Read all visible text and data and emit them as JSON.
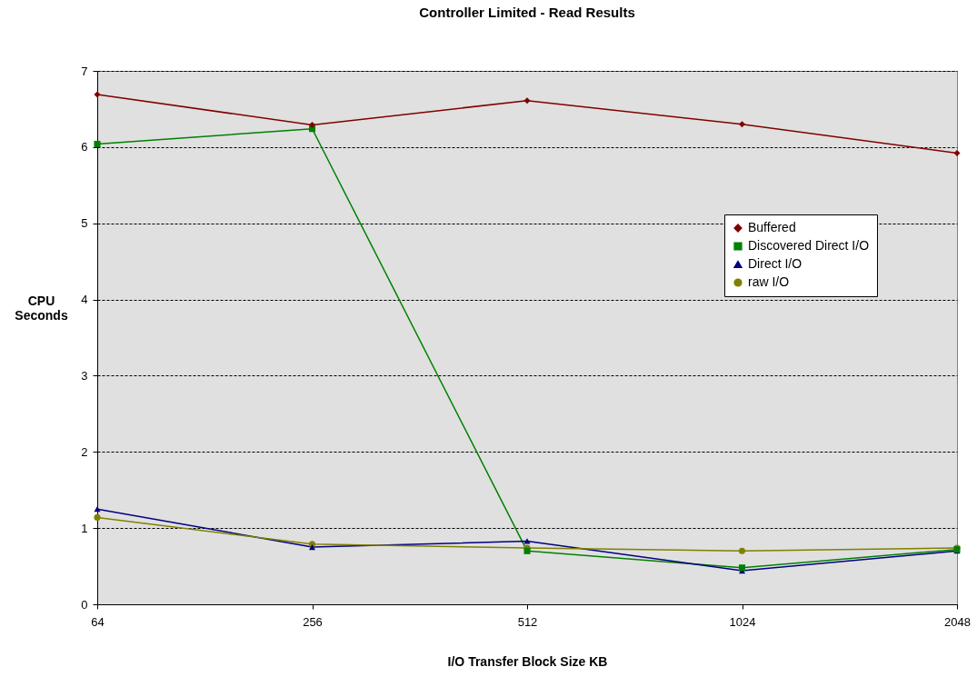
{
  "chart_data": {
    "type": "line",
    "title": "Controller Limited - Read Results",
    "xlabel": "I/O Transfer Block Size KB",
    "ylabel": "CPU Seconds",
    "categories": [
      "64",
      "256",
      "512",
      "1024",
      "2048"
    ],
    "series": [
      {
        "name": "Buffered",
        "color": "#800000",
        "marker": "diamond",
        "values": [
          6.69,
          6.29,
          6.61,
          6.3,
          5.92
        ]
      },
      {
        "name": "Discovered Direct I/O",
        "color": "#008000",
        "marker": "square",
        "values": [
          6.04,
          6.24,
          0.7,
          0.48,
          0.72
        ]
      },
      {
        "name": "Direct I/O",
        "color": "#000080",
        "marker": "triangle",
        "values": [
          1.25,
          0.75,
          0.83,
          0.44,
          0.7
        ]
      },
      {
        "name": "raw I/O",
        "color": "#808000",
        "marker": "circle",
        "values": [
          1.14,
          0.79,
          0.74,
          0.7,
          0.74
        ]
      }
    ],
    "ylim": [
      0,
      7
    ],
    "yticks": [
      0,
      1,
      2,
      3,
      4,
      5,
      6,
      7
    ],
    "grid": "y",
    "legend": "right"
  }
}
